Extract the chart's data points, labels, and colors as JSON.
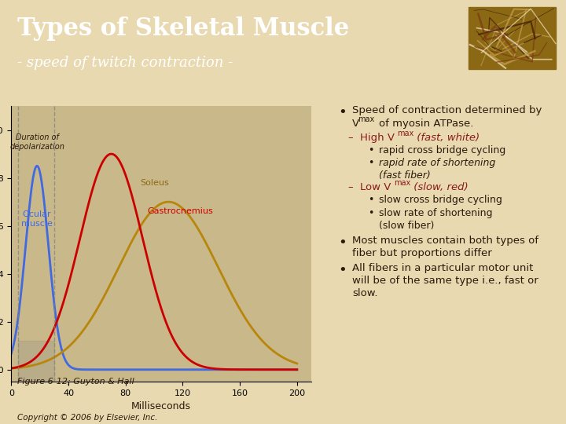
{
  "title": "Types of Skeletal Muscle",
  "subtitle": "- speed of twitch contraction -",
  "header_bg": "#9B1C2E",
  "header_text_color": "#FFFFFF",
  "body_bg": "#E8D9B0",
  "title_fontsize": 22,
  "subtitle_fontsize": 13,
  "figure_caption": "Figure 6-12; Guyton & Hall",
  "copyright": "Copyright © 2006 by Elsevier, Inc.",
  "bullet_color": "#000000",
  "dark_red": "#8B1A1A",
  "body_text_color": "#2B1A0A",
  "bullet_text": [
    "Speed of contraction determined by V_max of myosin ATPase."
  ],
  "sub_bullets_high": [
    "rapid cross bridge cycling",
    "rapid rate of shortening\n(fast fiber)"
  ],
  "sub_bullets_low": [
    "slow cross bridge cycling",
    "slow rate of shortening\n(slow fiber)"
  ],
  "extra_bullets": [
    "Most muscles contain both types of\nfiber but proportions differ",
    "All fibers in a particular motor unit\nwill be of the same type i.e., fast or\nslow."
  ]
}
